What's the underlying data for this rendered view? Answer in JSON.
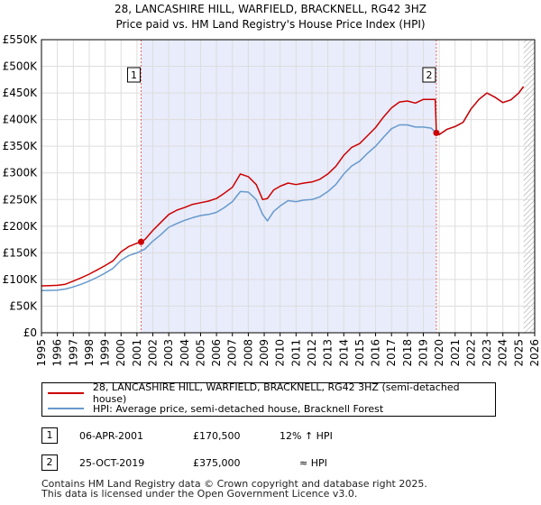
{
  "chart_data": {
    "type": "line",
    "title": "28, LANCASHIRE HILL, WARFIELD, BRACKNELL, RG42 3HZ",
    "subtitle": "Price paid vs. HM Land Registry's House Price Index (HPI)",
    "xlim": [
      1995,
      2026
    ],
    "ylim": [
      0,
      550000
    ],
    "x_ticks": [
      1995,
      1996,
      1997,
      1998,
      1999,
      2000,
      2001,
      2002,
      2003,
      2004,
      2005,
      2006,
      2007,
      2008,
      2009,
      2010,
      2011,
      2012,
      2013,
      2014,
      2015,
      2016,
      2017,
      2018,
      2019,
      2020,
      2021,
      2022,
      2023,
      2024,
      2025,
      2026
    ],
    "x_tick_labels": [
      "1995",
      "1996",
      "1997",
      "1998",
      "1999",
      "2000",
      "2001",
      "2002",
      "2003",
      "2004",
      "2005",
      "2006",
      "2007",
      "2008",
      "2009",
      "2010",
      "2011",
      "2012",
      "2013",
      "2014",
      "2015",
      "2016",
      "2017",
      "2018",
      "2019",
      "2020",
      "2021",
      "2022",
      "2023",
      "2024",
      "2025",
      "2026"
    ],
    "y_ticks": [
      0,
      50000,
      100000,
      150000,
      200000,
      250000,
      300000,
      350000,
      400000,
      450000,
      500000,
      550000
    ],
    "y_tick_labels": [
      "£0",
      "£50K",
      "£100K",
      "£150K",
      "£200K",
      "£250K",
      "£300K",
      "£350K",
      "£400K",
      "£450K",
      "£500K",
      "£550K"
    ],
    "shaded_range": [
      2001.26,
      2019.82
    ],
    "future_hatch_from": 2025.3,
    "series": [
      {
        "name": "28, LANCASHIRE HILL, WARFIELD, BRACKNELL, RG42 3HZ (semi-detached house)",
        "color": "#cc0000",
        "x": [
          1995.0,
          1995.5,
          1996.0,
          1996.5,
          1997.0,
          1997.5,
          1998.0,
          1998.5,
          1999.0,
          1999.5,
          2000.0,
          2000.5,
          2001.0,
          2001.26,
          2001.5,
          2002.0,
          2002.5,
          2003.0,
          2003.5,
          2004.0,
          2004.5,
          2005.0,
          2005.5,
          2006.0,
          2006.5,
          2007.0,
          2007.5,
          2008.0,
          2008.5,
          2008.9,
          2009.2,
          2009.6,
          2010.0,
          2010.5,
          2011.0,
          2011.5,
          2012.0,
          2012.5,
          2013.0,
          2013.5,
          2014.0,
          2014.5,
          2015.0,
          2015.5,
          2016.0,
          2016.5,
          2017.0,
          2017.5,
          2018.0,
          2018.5,
          2019.0,
          2019.5,
          2019.75,
          2019.82,
          2020.0,
          2020.5,
          2021.0,
          2021.5,
          2022.0,
          2022.5,
          2023.0,
          2023.5,
          2024.0,
          2024.5,
          2025.0,
          2025.3
        ],
        "y": [
          88000,
          88500,
          89000,
          91000,
          97000,
          103000,
          110000,
          118000,
          126000,
          135000,
          152000,
          162000,
          168000,
          170500,
          175000,
          192000,
          207000,
          222000,
          230000,
          235000,
          241000,
          244000,
          247000,
          252000,
          262000,
          273000,
          298000,
          293000,
          278000,
          250000,
          252000,
          268000,
          275000,
          281000,
          278000,
          281000,
          283000,
          288000,
          298000,
          312000,
          333000,
          348000,
          355000,
          370000,
          385000,
          405000,
          422000,
          433000,
          435000,
          431000,
          438000,
          438000,
          438000,
          375000,
          372000,
          382000,
          387000,
          395000,
          420000,
          438000,
          450000,
          442000,
          432000,
          437000,
          450000,
          462000
        ]
      },
      {
        "name": "HPI: Average price, semi-detached house, Bracknell Forest",
        "color": "#6699cc",
        "x": [
          1995.0,
          1995.5,
          1996.0,
          1996.5,
          1997.0,
          1997.5,
          1998.0,
          1998.5,
          1999.0,
          1999.5,
          2000.0,
          2000.5,
          2001.0,
          2001.5,
          2002.0,
          2002.5,
          2003.0,
          2003.5,
          2004.0,
          2004.5,
          2005.0,
          2005.5,
          2006.0,
          2006.5,
          2007.0,
          2007.5,
          2008.0,
          2008.5,
          2008.9,
          2009.2,
          2009.6,
          2010.0,
          2010.5,
          2011.0,
          2011.5,
          2012.0,
          2012.5,
          2013.0,
          2013.5,
          2014.0,
          2014.5,
          2015.0,
          2015.5,
          2016.0,
          2016.5,
          2017.0,
          2017.5,
          2018.0,
          2018.5,
          2019.0,
          2019.5,
          2019.82,
          2020.0,
          2020.5,
          2021.0,
          2021.5,
          2022.0,
          2022.5,
          2023.0,
          2023.5,
          2024.0,
          2024.5,
          2025.0,
          2025.3
        ],
        "y": [
          79000,
          79500,
          80000,
          82000,
          86000,
          91000,
          97000,
          104000,
          112000,
          121000,
          136000,
          145000,
          150000,
          157000,
          172000,
          184000,
          198000,
          205000,
          211000,
          216000,
          220000,
          222000,
          226000,
          235000,
          246000,
          265000,
          264000,
          250000,
          222000,
          210000,
          228000,
          238000,
          248000,
          246000,
          249000,
          250000,
          255000,
          265000,
          278000,
          298000,
          313000,
          322000,
          337000,
          350000,
          367000,
          383000,
          390000,
          390000,
          386000,
          386000,
          384000,
          374000,
          372000,
          382000,
          387000,
          395000,
          420000,
          438000,
          450000,
          442000,
          432000,
          437000,
          450000,
          462000
        ]
      }
    ],
    "sales": [
      {
        "label": "1",
        "x": 2001.26,
        "y": 170500
      },
      {
        "label": "2",
        "x": 2019.82,
        "y": 375000
      }
    ]
  },
  "legend": {
    "red_label": "28, LANCASHIRE HILL, WARFIELD, BRACKNELL, RG42 3HZ (semi-detached house)",
    "blue_label": "HPI: Average price, semi-detached house, Bracknell Forest"
  },
  "transactions": [
    {
      "num": "1",
      "date": "06-APR-2001",
      "price": "£170,500",
      "hpi": "12% ↑ HPI"
    },
    {
      "num": "2",
      "date": "25-OCT-2019",
      "price": "£375,000",
      "hpi": "≈ HPI"
    }
  ],
  "footer": {
    "line1": "Contains HM Land Registry data © Crown copyright and database right 2025.",
    "line2": "This data is licensed under the Open Government Licence v3.0."
  }
}
